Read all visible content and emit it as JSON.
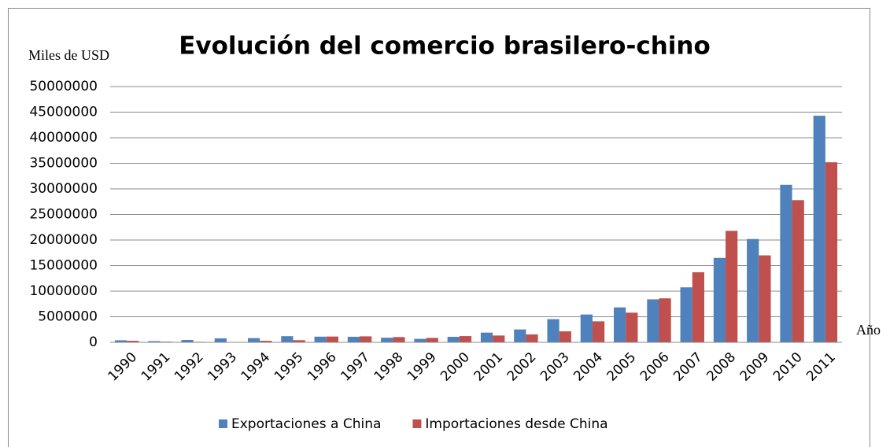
{
  "chart_data": {
    "type": "bar",
    "title": "Evolución del comercio brasilero-chino",
    "y_label": "Miles de USD",
    "x_label": "Año",
    "categories": [
      "1990",
      "1991",
      "1992",
      "1993",
      "1994",
      "1995",
      "1996",
      "1997",
      "1998",
      "1999",
      "2000",
      "2001",
      "2002",
      "2003",
      "2004",
      "2005",
      "2006",
      "2007",
      "2008",
      "2009",
      "2010",
      "2011"
    ],
    "series": [
      {
        "name": "Exportaciones a China",
        "color": "#4f81bd",
        "values": [
          400000,
          230000,
          460000,
          780000,
          820000,
          1200000,
          1110000,
          1090000,
          900000,
          680000,
          1080000,
          1900000,
          2520000,
          4530000,
          5440000,
          6830000,
          8400000,
          10750000,
          16500000,
          20200000,
          30800000,
          44300000
        ]
      },
      {
        "name": "Importaciones desde China",
        "color": "#c0504d",
        "values": [
          300000,
          130000,
          100000,
          50000,
          300000,
          420000,
          1130000,
          1170000,
          1030000,
          870000,
          1220000,
          1330000,
          1550000,
          2150000,
          4100000,
          5800000,
          8600000,
          13700000,
          21800000,
          17000000,
          27800000,
          35200000
        ]
      }
    ],
    "ylim": [
      0,
      50000000
    ],
    "yticks": [
      0,
      5000000,
      10000000,
      15000000,
      20000000,
      25000000,
      30000000,
      35000000,
      40000000,
      45000000,
      50000000
    ],
    "grid": true,
    "legend": "bottom"
  }
}
